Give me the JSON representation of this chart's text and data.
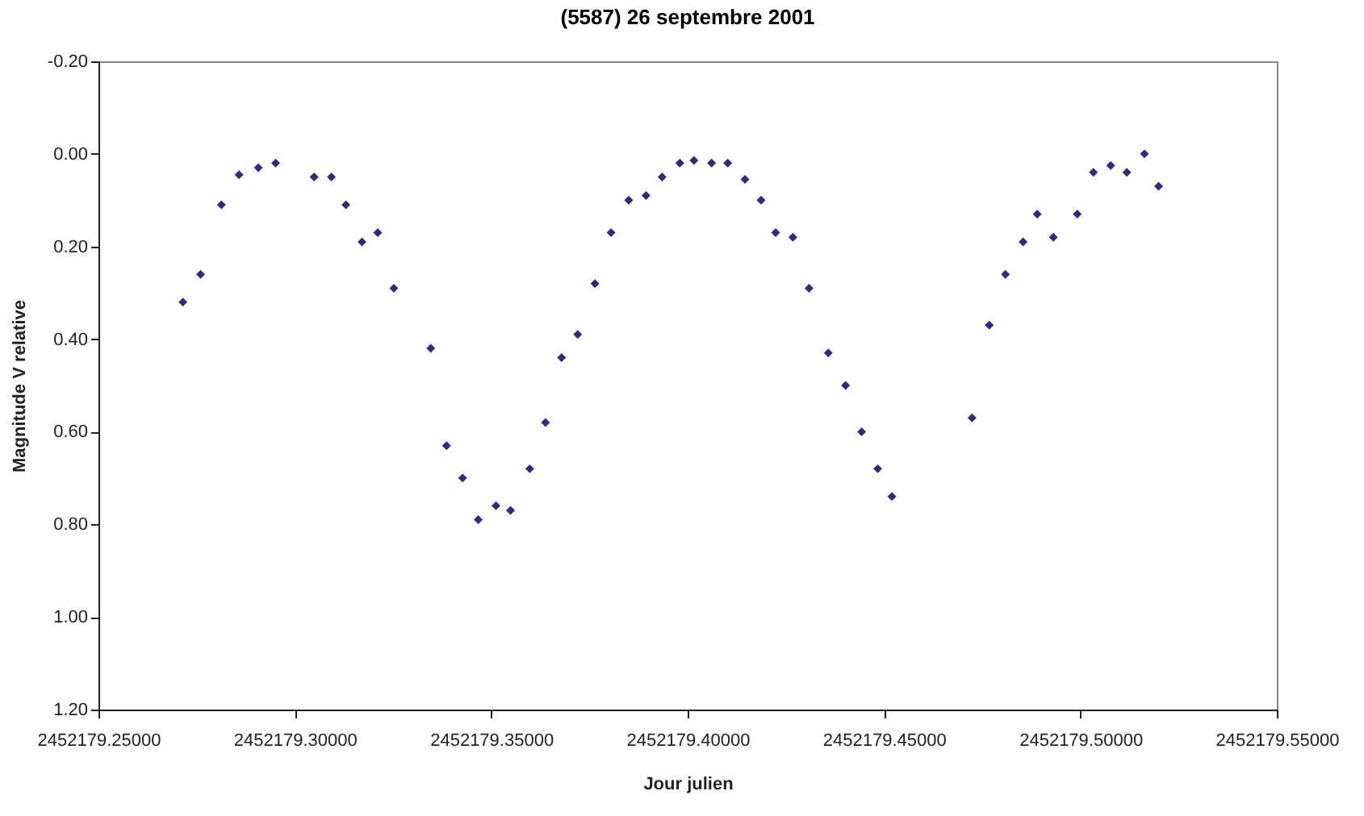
{
  "chart_data": {
    "type": "scatter",
    "title": "(5587) 26 septembre 2001",
    "xlabel": "Jour julien",
    "ylabel": "Magnitude V relative",
    "marker": "diamond",
    "grid": false,
    "xlim": [
      2452179.25,
      2452179.55
    ],
    "ylim": [
      1.2,
      -0.2
    ],
    "xticks": [
      {
        "value": 2452179.25,
        "label": "2452179.25000"
      },
      {
        "value": 2452179.3,
        "label": "2452179.30000"
      },
      {
        "value": 2452179.35,
        "label": "2452179.35000"
      },
      {
        "value": 2452179.4,
        "label": "2452179.40000"
      },
      {
        "value": 2452179.45,
        "label": "2452179.45000"
      },
      {
        "value": 2452179.5,
        "label": "2452179.50000"
      },
      {
        "value": 2452179.55,
        "label": "2452179.55000"
      }
    ],
    "yticks": [
      {
        "value": -0.2,
        "label": "-0.20"
      },
      {
        "value": 0,
        "label": "0.00"
      },
      {
        "value": 0.2,
        "label": "0.20"
      },
      {
        "value": 0.4,
        "label": "0.40"
      },
      {
        "value": 0.6,
        "label": "0.60"
      },
      {
        "value": 0.8,
        "label": "0.80"
      },
      {
        "value": 1,
        "label": "1.00"
      },
      {
        "value": 1.2,
        "label": "1.20"
      }
    ],
    "series": [
      {
        "color": "#2b2b85",
        "x": [
          2452179.2715,
          2452179.276,
          2452179.2813,
          2452179.2858,
          2452179.2907,
          2452179.2951,
          2452179.3049,
          2452179.3093,
          2452179.313,
          2452179.3171,
          2452179.3211,
          2452179.3252,
          2452179.3346,
          2452179.3386,
          2452179.3427,
          2452179.3467,
          2452179.3512,
          2452179.3549,
          2452179.3598,
          2452179.3638,
          2452179.3679,
          2452179.372,
          2452179.3764,
          2452179.3805,
          2452179.385,
          2452179.3894,
          2452179.3935,
          2452179.398,
          2452179.4016,
          2452179.4061,
          2452179.4102,
          2452179.4146,
          2452179.4187,
          2452179.4224,
          2452179.4268,
          2452179.4309,
          2452179.4358,
          2452179.4402,
          2452179.4443,
          2452179.4484,
          2452179.452,
          2452179.4724,
          2452179.4768,
          2452179.4809,
          2452179.4854,
          2452179.489,
          2452179.4931,
          2452179.4992,
          2452179.5033,
          2452179.5077,
          2452179.5118,
          2452179.5163,
          2452179.5199
        ],
        "values": [
          0.32,
          0.26,
          0.11,
          0.045,
          0.03,
          0.02,
          0.05,
          0.05,
          0.11,
          0.19,
          0.17,
          0.29,
          0.42,
          0.63,
          0.7,
          0.79,
          0.76,
          0.77,
          0.68,
          0.58,
          0.44,
          0.39,
          0.28,
          0.17,
          0.1,
          0.09,
          0.05,
          0.02,
          0.014,
          0.02,
          0.02,
          0.055,
          0.1,
          0.17,
          0.18,
          0.29,
          0.43,
          0.5,
          0.6,
          0.68,
          0.74,
          0.57,
          0.37,
          0.26,
          0.19,
          0.13,
          0.18,
          0.13,
          0.04,
          0.025,
          0.04,
          0,
          0.07
        ]
      }
    ]
  }
}
